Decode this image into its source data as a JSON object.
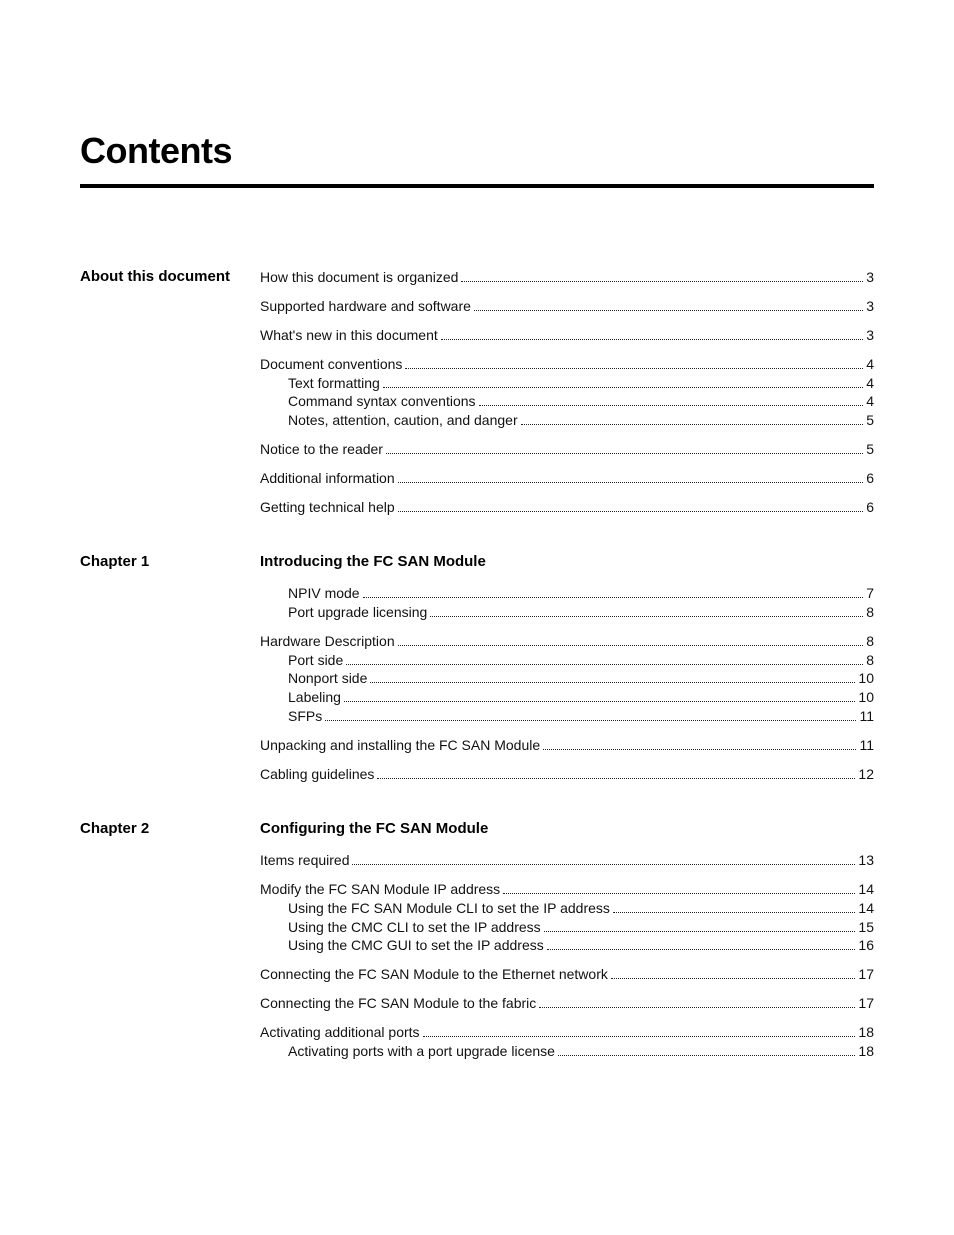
{
  "title": "Contents",
  "sections": [
    {
      "label": "",
      "heading": "About this document",
      "headingOnLeft": true,
      "groups": [
        [
          {
            "text": "How this document is organized",
            "page": "3",
            "indent": false
          }
        ],
        [
          {
            "text": "Supported hardware and software",
            "page": "3",
            "indent": false
          }
        ],
        [
          {
            "text": "What's new in this document",
            "page": "3",
            "indent": false
          }
        ],
        [
          {
            "text": "Document conventions",
            "page": "4",
            "indent": false
          },
          {
            "text": "Text formatting",
            "page": "4",
            "indent": true
          },
          {
            "text": "Command syntax conventions",
            "page": "4",
            "indent": true
          },
          {
            "text": "Notes, attention, caution, and danger",
            "page": "5",
            "indent": true
          }
        ],
        [
          {
            "text": "Notice to the reader",
            "page": "5",
            "indent": false
          }
        ],
        [
          {
            "text": "Additional information",
            "page": "6",
            "indent": false
          }
        ],
        [
          {
            "text": "Getting technical help",
            "page": "6",
            "indent": false
          }
        ]
      ]
    },
    {
      "label": "Chapter 1",
      "heading": "Introducing the FC SAN Module",
      "headingOnLeft": false,
      "groups": [
        [
          {
            "text": "NPIV mode",
            "page": "7",
            "indent": true
          },
          {
            "text": "Port upgrade licensing",
            "page": "8",
            "indent": true
          }
        ],
        [
          {
            "text": "Hardware Description",
            "page": "8",
            "indent": false
          },
          {
            "text": "Port side",
            "page": "8",
            "indent": true
          },
          {
            "text": "Nonport side",
            "page": "10",
            "indent": true
          },
          {
            "text": "Labeling",
            "page": "10",
            "indent": true
          },
          {
            "text": "SFPs",
            "page": "11",
            "indent": true
          }
        ],
        [
          {
            "text": "Unpacking and installing the FC SAN Module",
            "page": "11",
            "indent": false
          }
        ],
        [
          {
            "text": "Cabling guidelines",
            "page": "12",
            "indent": false
          }
        ]
      ]
    },
    {
      "label": "Chapter 2",
      "heading": "Configuring the FC SAN Module",
      "headingOnLeft": false,
      "groups": [
        [
          {
            "text": "Items required",
            "page": "13",
            "indent": false
          }
        ],
        [
          {
            "text": "Modify the FC SAN Module IP address",
            "page": "14",
            "indent": false
          },
          {
            "text": "Using the FC SAN Module CLI to set the IP address",
            "page": "14",
            "indent": true
          },
          {
            "text": "Using the CMC CLI to set the IP address",
            "page": "15",
            "indent": true
          },
          {
            "text": "Using the CMC GUI to set the IP address",
            "page": "16",
            "indent": true
          }
        ],
        [
          {
            "text": "Connecting the FC SAN Module to the Ethernet network",
            "page": "17",
            "indent": false
          }
        ],
        [
          {
            "text": "Connecting the FC SAN Module to the fabric",
            "page": "17",
            "indent": false
          }
        ],
        [
          {
            "text": "Activating additional ports",
            "page": "18",
            "indent": false
          },
          {
            "text": "Activating ports with a port upgrade license",
            "page": "18",
            "indent": true
          }
        ]
      ]
    }
  ]
}
